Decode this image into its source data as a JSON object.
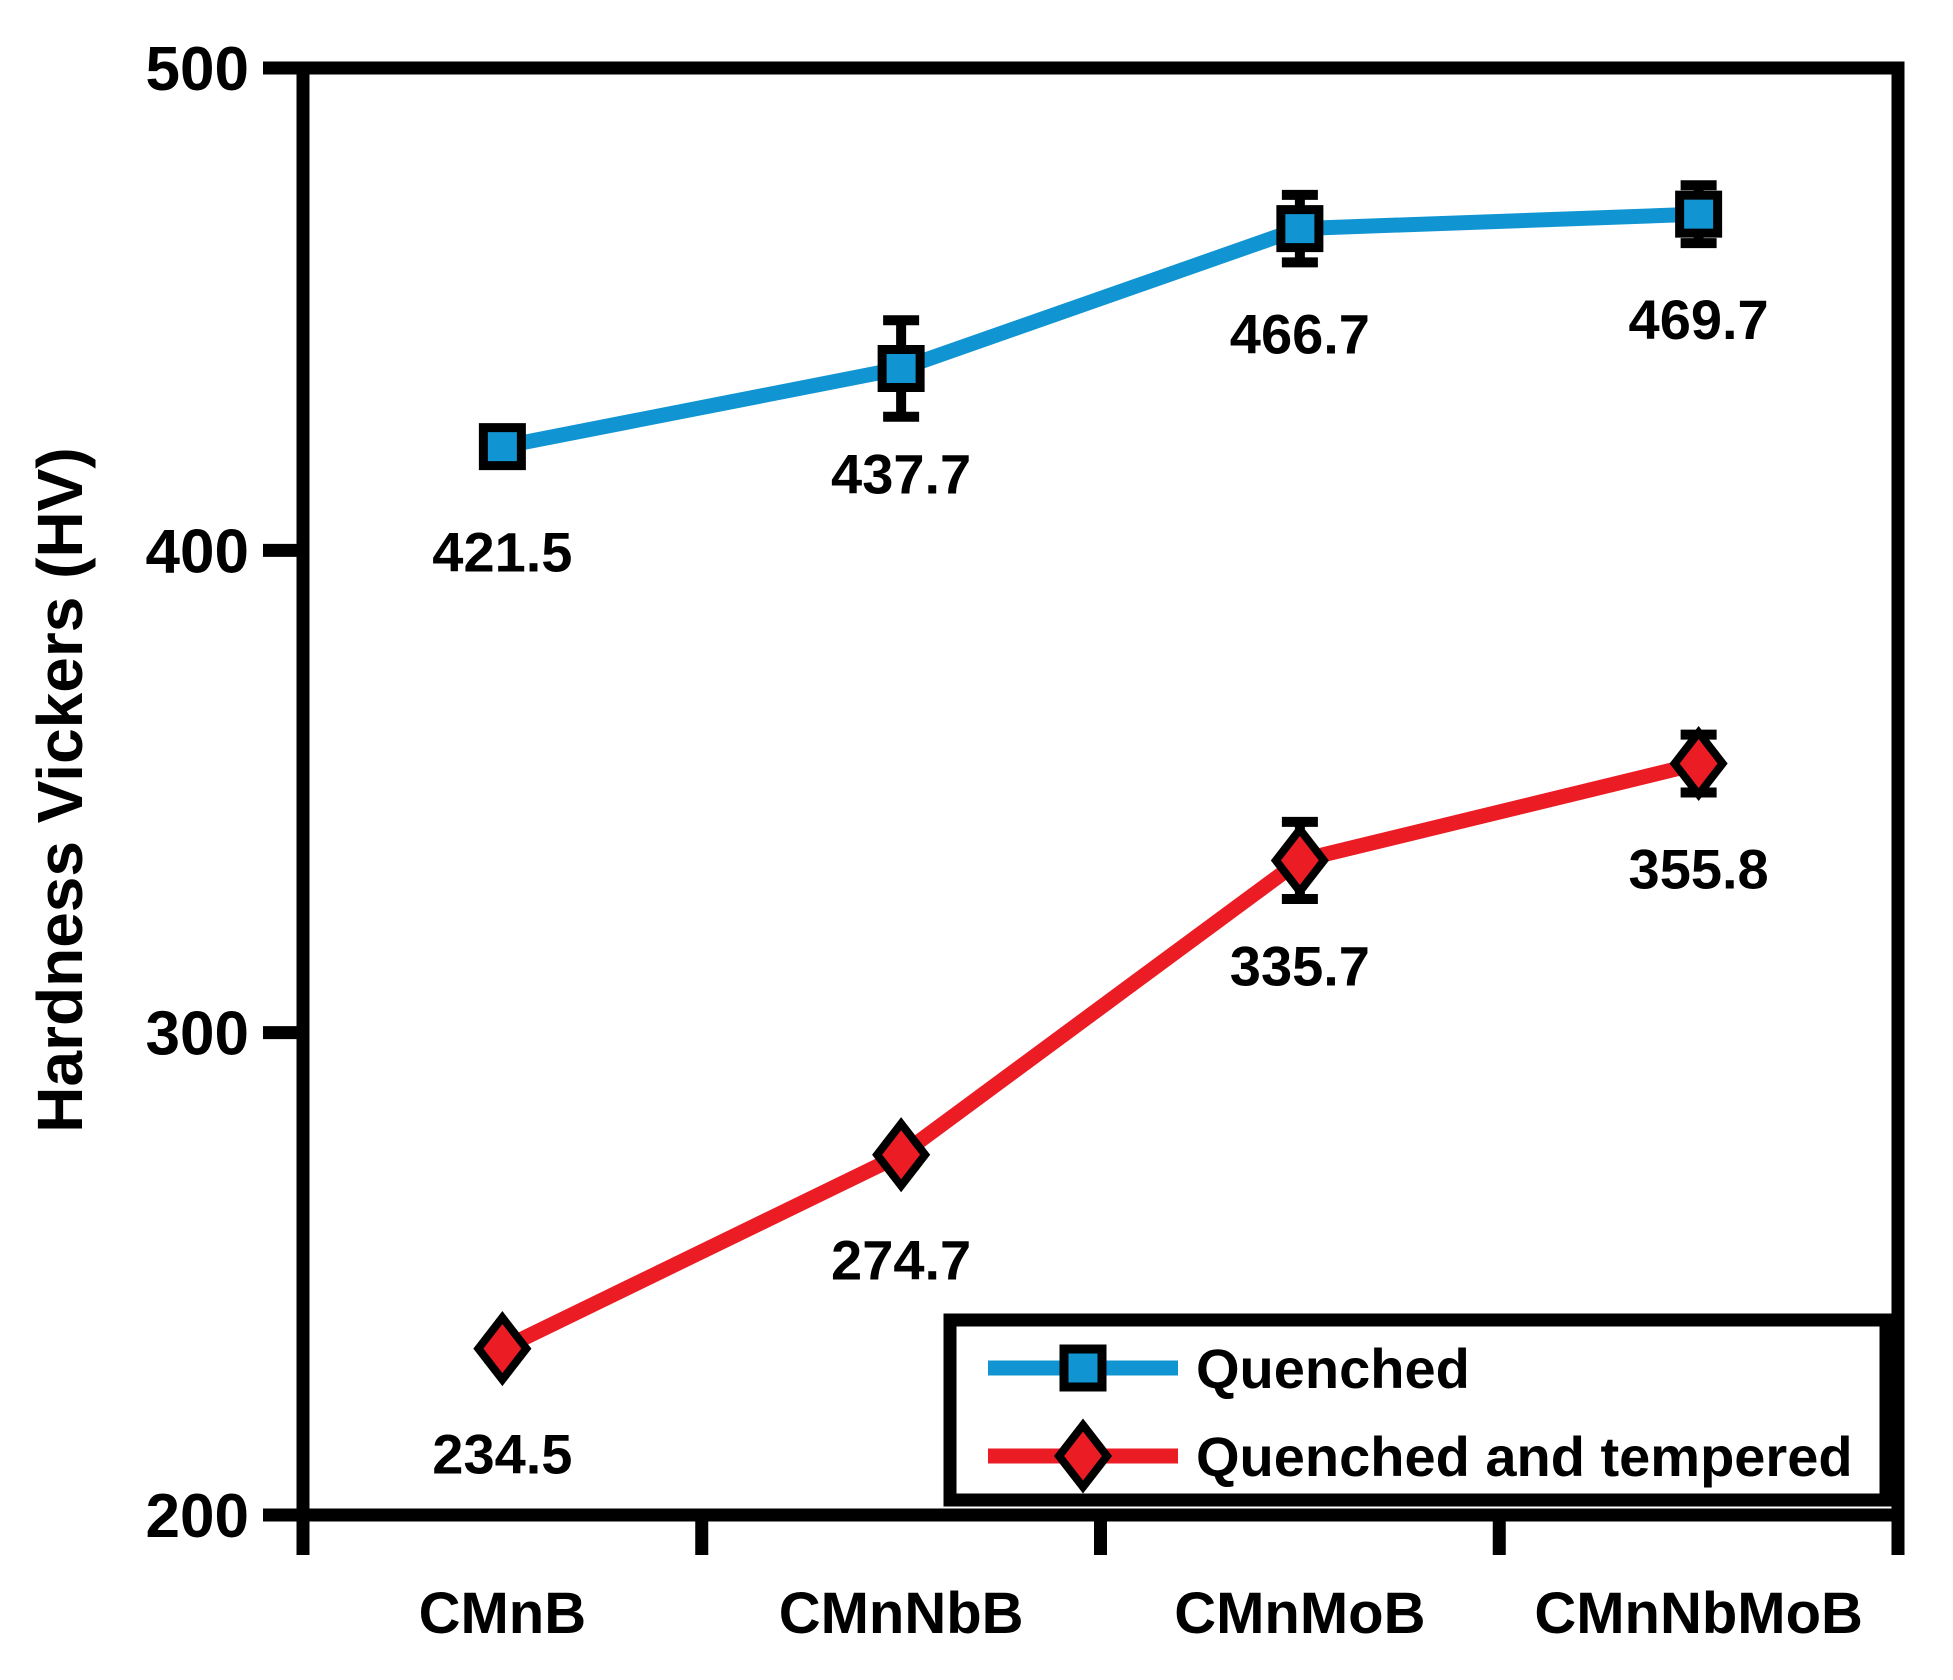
{
  "chart_data": {
    "type": "line",
    "title": "",
    "xlabel": "",
    "ylabel": "Hardness Vickers (HV)",
    "ylim": [
      200,
      500
    ],
    "yticks": [
      200,
      300,
      400,
      500
    ],
    "categories": [
      "CMnB",
      "CMnNbB",
      "CMnMoB",
      "CMnNbMoB"
    ],
    "series": [
      {
        "name": "Quenched",
        "marker": "square",
        "color": "#1095d2",
        "values": [
          421.5,
          437.7,
          466.7,
          469.7
        ],
        "errors": [
          2,
          10,
          7,
          6
        ],
        "point_labels": [
          "421.5",
          "437.7",
          "466.7",
          "469.7"
        ]
      },
      {
        "name": "Quenched and tempered",
        "marker": "diamond",
        "color": "#eb1c24",
        "values": [
          234.5,
          274.7,
          335.7,
          355.8
        ],
        "errors": [
          2,
          2,
          8,
          6
        ],
        "point_labels": [
          "234.5",
          "274.7",
          "335.7",
          "355.8"
        ]
      }
    ],
    "grid": false,
    "legend_position": "inside-bottom-right",
    "axis_color": "#000000",
    "error_bar_color": "#000000",
    "marker_outline_color": "#000000"
  }
}
